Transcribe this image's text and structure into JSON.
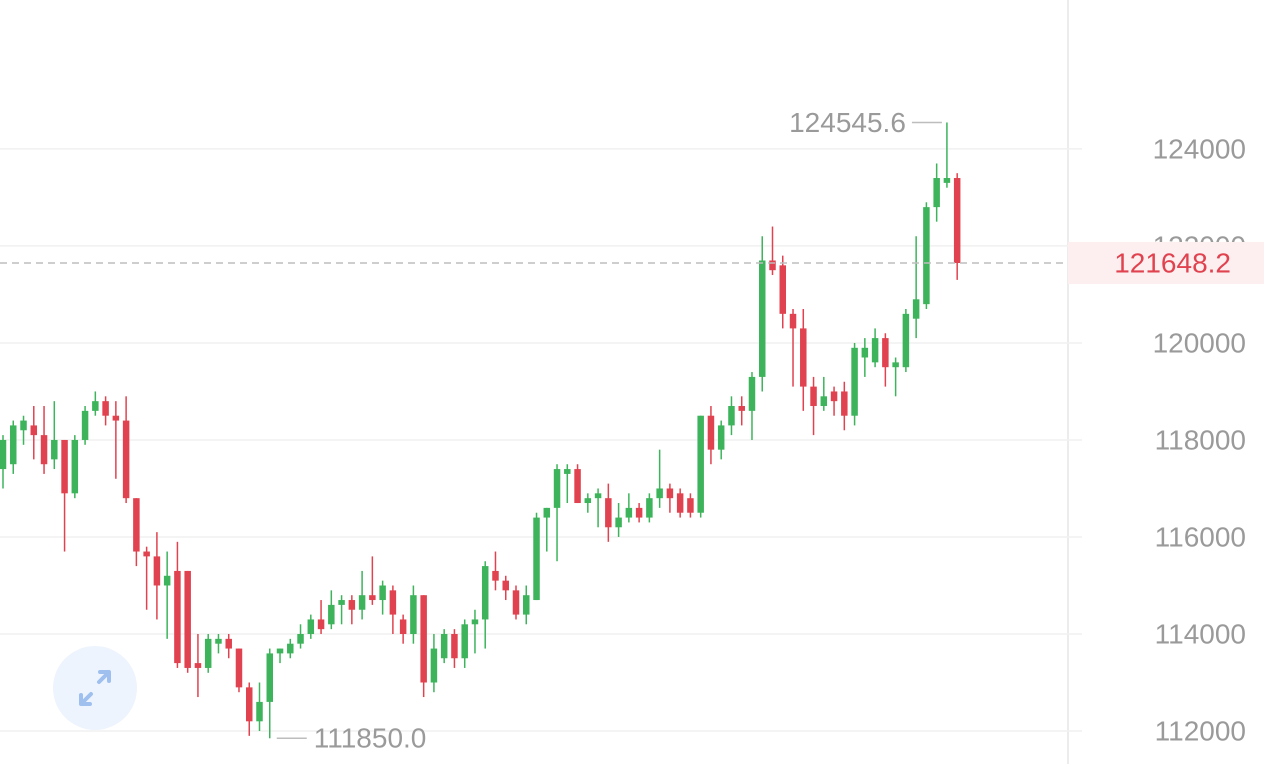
{
  "chart_data": {
    "type": "candlestick",
    "up_color": "#3db45b",
    "down_color": "#e0434f",
    "ylim": [
      111320,
      127070
    ],
    "yticks": [
      112000,
      114000,
      116000,
      118000,
      120000,
      122000,
      124000
    ],
    "grid": true,
    "open": [
      117400,
      117500,
      118200,
      118300,
      118100,
      117600,
      118000,
      116900,
      118000,
      118600,
      118800,
      118500,
      118400,
      116800,
      115700,
      115600,
      115000,
      115300,
      115300,
      113400,
      113300,
      113800,
      113900,
      113700,
      112900,
      112200,
      112600,
      113600,
      113600,
      113800,
      114000,
      114300,
      114200,
      114600,
      114700,
      114500,
      114800,
      114700,
      114900,
      114300,
      114000,
      114800,
      113000,
      113500,
      114000,
      113500,
      114200,
      114300,
      115300,
      115100,
      114900,
      114400,
      114700,
      116400,
      116600,
      117300,
      117400,
      116700,
      116800,
      116800,
      116200,
      116400,
      116600,
      116400,
      116800,
      117000,
      116900,
      116800,
      116500,
      118500,
      117800,
      118300,
      118700,
      118600,
      119300,
      121700,
      121600,
      120600,
      120300,
      119100,
      118700,
      119000,
      119000,
      118500,
      119700,
      119600,
      120100,
      119500,
      119500,
      120500,
      120800,
      122800,
      123300,
      123400
    ],
    "high": [
      118100,
      118400,
      118500,
      118700,
      118700,
      118800,
      118000,
      118100,
      118700,
      119000,
      118900,
      118800,
      118900,
      116800,
      115800,
      116100,
      115700,
      115900,
      115300,
      114000,
      114000,
      114000,
      114000,
      113700,
      113000,
      113000,
      113700,
      113700,
      113900,
      114200,
      114400,
      114700,
      114900,
      114800,
      114800,
      115300,
      115600,
      115100,
      115000,
      114400,
      115000,
      114800,
      114000,
      114100,
      114100,
      114300,
      114500,
      115500,
      115700,
      115200,
      115000,
      115000,
      116500,
      116600,
      117500,
      117500,
      117500,
      116900,
      117000,
      117100,
      116700,
      116900,
      116700,
      116900,
      117800,
      117100,
      117000,
      116900,
      118500,
      118700,
      118400,
      118900,
      118900,
      119400,
      122200,
      122400,
      121800,
      120700,
      120700,
      119300,
      119300,
      119100,
      119200,
      120000,
      120100,
      120300,
      120200,
      119700,
      120700,
      122200,
      122900,
      123700,
      124545.6,
      123500
    ],
    "low": [
      117000,
      117300,
      117900,
      117600,
      117300,
      117400,
      115700,
      116800,
      117900,
      118500,
      118300,
      117200,
      116700,
      115400,
      114500,
      114300,
      113900,
      113300,
      113200,
      112700,
      113200,
      113600,
      113500,
      112800,
      111900,
      112000,
      111850,
      113400,
      113500,
      113700,
      113900,
      114000,
      114100,
      114200,
      114200,
      114300,
      114600,
      114400,
      114000,
      113800,
      113800,
      112700,
      112800,
      113400,
      113300,
      113300,
      113600,
      113700,
      114900,
      114700,
      114300,
      114200,
      114700,
      115700,
      115500,
      116700,
      116700,
      116500,
      116200,
      115900,
      116000,
      116300,
      116300,
      116300,
      116600,
      116500,
      116400,
      116400,
      116400,
      117500,
      117600,
      118100,
      118300,
      118000,
      119000,
      121400,
      120300,
      119100,
      118600,
      118100,
      118600,
      118500,
      118200,
      118300,
      119300,
      119500,
      119100,
      118900,
      119400,
      120100,
      120700,
      122500,
      123200,
      121300
    ],
    "close": [
      118000,
      118300,
      118400,
      118100,
      117500,
      118000,
      116900,
      118000,
      118600,
      118800,
      118500,
      118400,
      116800,
      115700,
      115600,
      115000,
      115200,
      113400,
      113300,
      113300,
      113900,
      113900,
      113700,
      112900,
      112200,
      112600,
      113600,
      113700,
      113800,
      114000,
      114300,
      114100,
      114600,
      114700,
      114500,
      114800,
      114700,
      115000,
      114400,
      114000,
      114800,
      113000,
      113700,
      114000,
      113500,
      114200,
      114300,
      115400,
      115100,
      114900,
      114400,
      114800,
      116400,
      116600,
      117400,
      117400,
      116700,
      116800,
      116900,
      116200,
      116400,
      116600,
      116400,
      116800,
      117000,
      116800,
      116500,
      116500,
      118500,
      117800,
      118300,
      118700,
      118600,
      119300,
      121700,
      121500,
      120600,
      120300,
      119100,
      118700,
      118900,
      118800,
      118500,
      119900,
      119900,
      120100,
      119500,
      119600,
      120600,
      120900,
      122800,
      123400,
      123400,
      121648.2
    ],
    "max_label": {
      "value": 124545.6,
      "label": "124545.6"
    },
    "min_label": {
      "value": 111850,
      "label": "111850.0"
    },
    "last_price": {
      "value": 121648.2,
      "label": "121648.2"
    }
  }
}
